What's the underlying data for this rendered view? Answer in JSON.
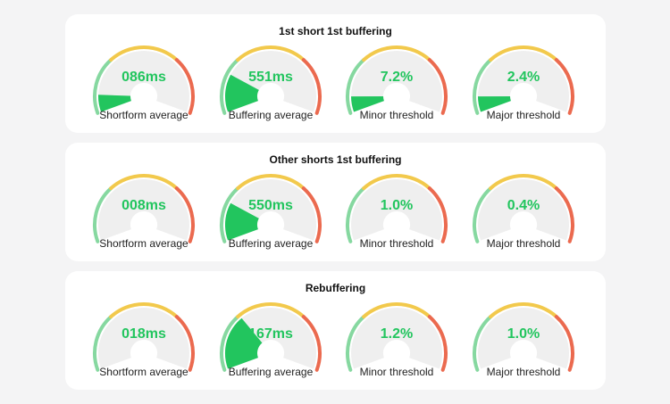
{
  "colors": {
    "green": "#86d8a0",
    "yellow": "#f2c94c",
    "red": "#eb6a4f",
    "fill": "#22c55e",
    "track": "#efefef"
  },
  "sections": [
    {
      "title": "1st short 1st buffering",
      "gauges": [
        {
          "value": "086ms",
          "label": "Shortform average",
          "level": 0.1
        },
        {
          "value": "551ms",
          "label": "Buffering average",
          "level": 0.22
        },
        {
          "value": "7.2%",
          "label": "Minor threshold",
          "level": 0.09
        },
        {
          "value": "2.4%",
          "label": "Major threshold",
          "level": 0.09
        }
      ]
    },
    {
      "title": "Other shorts 1st buffering",
      "gauges": [
        {
          "value": "008ms",
          "label": "Shortform average",
          "level": 0
        },
        {
          "value": "550ms",
          "label": "Buffering average",
          "level": 0.22
        },
        {
          "value": "1.0%",
          "label": "Minor threshold",
          "level": 0
        },
        {
          "value": "0.4%",
          "label": "Major threshold",
          "level": 0
        }
      ]
    },
    {
      "title": "Rebuffering",
      "gauges": [
        {
          "value": "018ms",
          "label": "Shortform average",
          "level": 0
        },
        {
          "value": "167ms",
          "label": "Buffering average",
          "level": 0.32
        },
        {
          "value": "1.2%",
          "label": "Minor threshold",
          "level": 0
        },
        {
          "value": "1.0%",
          "label": "Major threshold",
          "level": 0
        }
      ]
    }
  ]
}
